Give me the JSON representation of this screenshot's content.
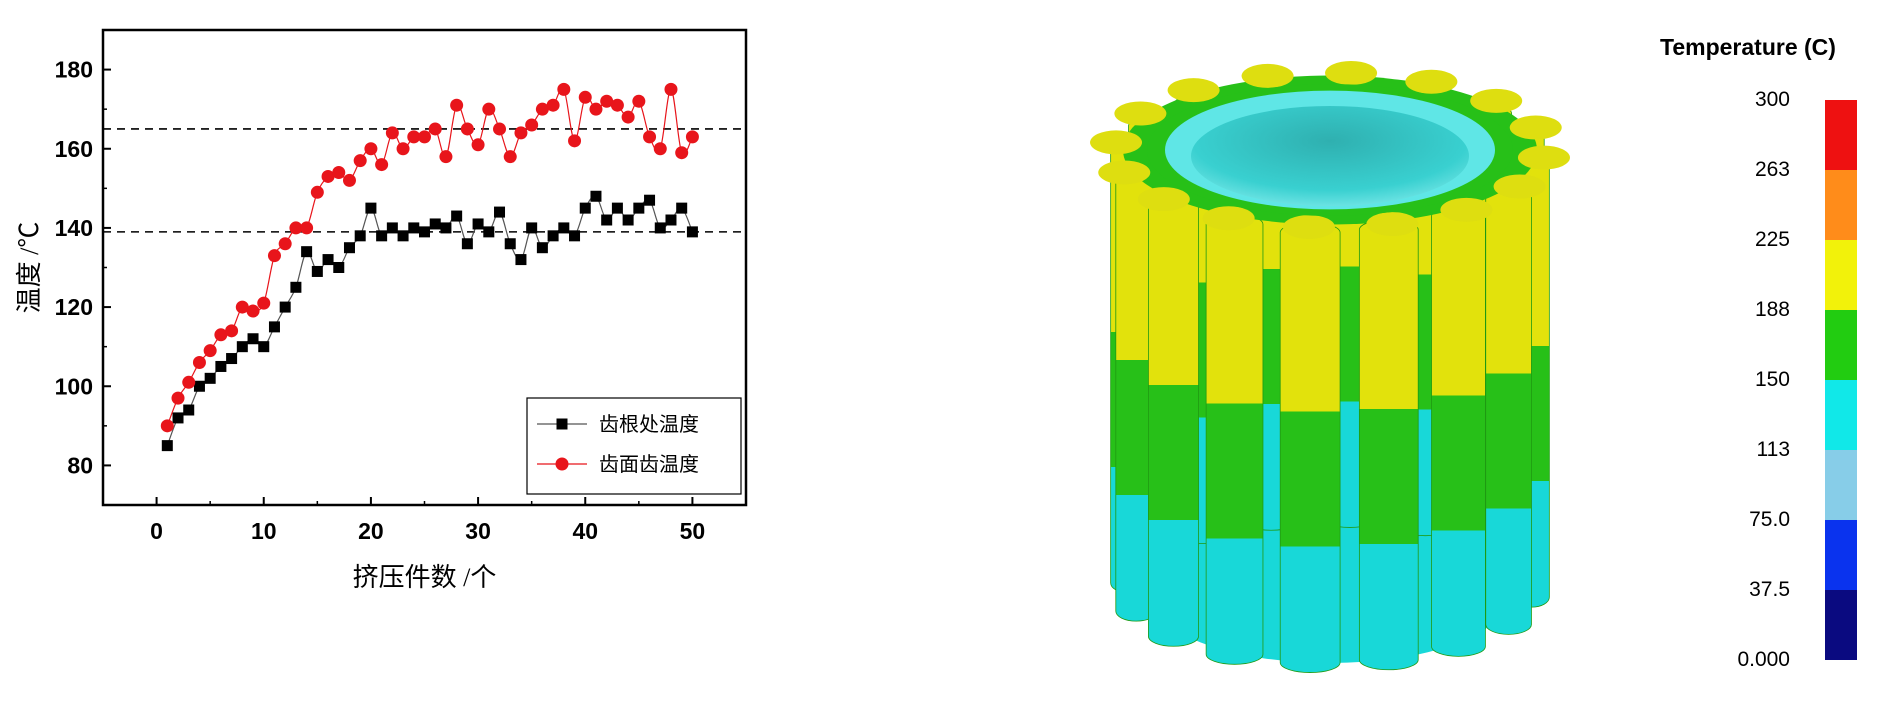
{
  "chart_data": {
    "type": "scatter",
    "xlabel": "挤压件数 /个",
    "ylabel": "温度 /℃",
    "xlim": [
      -5,
      55
    ],
    "ylim": [
      70,
      190
    ],
    "xticks": [
      0,
      10,
      20,
      30,
      40,
      50
    ],
    "yticks": [
      80,
      100,
      120,
      140,
      160,
      180
    ],
    "reference_lines": [
      165,
      139
    ],
    "legend_position": "bottom-right",
    "series": [
      {
        "name": "齿根处温度",
        "marker": "square",
        "color": "#000000",
        "x": [
          1,
          2,
          3,
          4,
          5,
          6,
          7,
          8,
          9,
          10,
          11,
          12,
          13,
          14,
          15,
          16,
          17,
          18,
          19,
          20,
          21,
          22,
          23,
          24,
          25,
          26,
          27,
          28,
          29,
          30,
          31,
          32,
          33,
          34,
          35,
          36,
          37,
          38,
          39,
          40,
          41,
          42,
          43,
          44,
          45,
          46,
          47,
          48,
          49,
          50
        ],
        "y": [
          85,
          92,
          94,
          100,
          102,
          105,
          107,
          110,
          112,
          110,
          115,
          120,
          125,
          134,
          129,
          132,
          130,
          135,
          138,
          145,
          138,
          140,
          138,
          140,
          139,
          141,
          140,
          143,
          136,
          141,
          139,
          144,
          136,
          132,
          140,
          135,
          138,
          140,
          138,
          145,
          148,
          142,
          145,
          142,
          145,
          147,
          140,
          142,
          145,
          139
        ]
      },
      {
        "name": "齿面齿温度",
        "marker": "circle",
        "color": "#e8151b",
        "x": [
          1,
          2,
          3,
          4,
          5,
          6,
          7,
          8,
          9,
          10,
          11,
          12,
          13,
          14,
          15,
          16,
          17,
          18,
          19,
          20,
          21,
          22,
          23,
          24,
          25,
          26,
          27,
          28,
          29,
          30,
          31,
          32,
          33,
          34,
          35,
          36,
          37,
          38,
          39,
          40,
          41,
          42,
          43,
          44,
          45,
          46,
          47,
          48,
          49,
          50
        ],
        "y": [
          90,
          97,
          101,
          106,
          109,
          113,
          114,
          120,
          119,
          121,
          133,
          136,
          140,
          140,
          149,
          153,
          154,
          152,
          157,
          160,
          156,
          164,
          160,
          163,
          163,
          165,
          158,
          171,
          165,
          161,
          170,
          165,
          158,
          164,
          166,
          170,
          171,
          175,
          162,
          173,
          170,
          172,
          171,
          168,
          172,
          163,
          160,
          175,
          159,
          163
        ]
      }
    ]
  },
  "contour_legend": {
    "title": "Temperature (C)",
    "levels": [
      "300",
      "263",
      "225",
      "188",
      "150",
      "113",
      "75.0",
      "37.5",
      "0.000"
    ],
    "colors": [
      "#ee1111",
      "#ff8c1a",
      "#f2f20a",
      "#22cc11",
      "#11e8e8",
      "#87cde8",
      "#0a33ee",
      "#0a0a80"
    ]
  }
}
